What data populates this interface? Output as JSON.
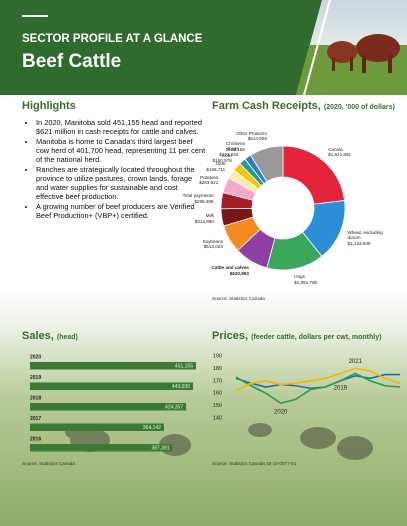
{
  "header": {
    "kicker": "SECTOR PROFILE AT A GLANCE",
    "title": "Beef Cattle"
  },
  "highlights": {
    "title": "Highlights",
    "items": [
      "In 2020, Manitoba sold 451,155 head and reported $621 million in cash receipts for cattle and calves.",
      "Manitoba is home to Canada's third largest beef cow herd of 401,700 head, representing 11 per cent of the national herd.",
      "Ranches are strategically located throughout the province to utilize pastures, crown lands, forage and water supplies for sustainable and cost effective beef production.",
      "A growing number of beef producers are Verified Beef Production+ (VBP+) certified."
    ]
  },
  "chart_data": [
    {
      "type": "pie",
      "donut": true,
      "title": "Farm Cash Receipts,",
      "subtitle": "(2020, '000 of dollars)",
      "categories": [
        "Canola",
        "Wheat, excluding durum",
        "Hogs",
        "Cattle and calves",
        "Soybeans",
        "Milk",
        "Total payments",
        "Potatoes",
        "Oats",
        "Corn",
        "Eggs",
        "Chickens",
        "Other Products"
      ],
      "values": [
        1621891,
        1133939,
        1051790,
        620850,
        513023,
        314880,
        295489,
        283621,
        168711,
        160578,
        123642,
        123156,
        614926
      ],
      "value_labels": [
        "$1,621,891",
        "$1,133,939",
        "$1,051,790",
        "$620,850",
        "$513,023",
        "$314,880",
        "$295,489",
        "$283,621",
        "$168,711",
        "$160,578",
        "$123,642",
        "$123,156",
        "$614,926"
      ],
      "colors": [
        "#e3243b",
        "#2a8fd8",
        "#3aa75a",
        "#8e3fa6",
        "#f58a1f",
        "#7a1416",
        "#a51d24",
        "#f5a9c8",
        "#f7ecb0",
        "#f6c400",
        "#1d9e9a",
        "#2f7fc1",
        "#9a9a9a"
      ],
      "source": "Source: Statistics Canada"
    },
    {
      "type": "bar",
      "orientation": "horizontal",
      "title": "Sales,",
      "subtitle": "(head)",
      "categories": [
        "2020",
        "2019",
        "2018",
        "2017",
        "2016"
      ],
      "values": [
        451155,
        443030,
        424357,
        364142,
        387391
      ],
      "value_labels": [
        "451,155",
        "443,030",
        "424,357",
        "364,142",
        "387,391"
      ],
      "color": "#3b7a34",
      "source": "Source: Statistics Canada"
    },
    {
      "type": "line",
      "title": "Prices,",
      "subtitle": "(feeder cattle, dollars per cwt, monthly)",
      "categories": [
        null,
        null,
        null,
        null,
        null,
        null,
        null,
        null,
        null,
        null,
        null,
        null
      ],
      "series": [
        {
          "name": "2019",
          "color": "#1f6fa6",
          "values": [
            172,
            168,
            165,
            167,
            166,
            164,
            165,
            170,
            174,
            172,
            175,
            175
          ]
        },
        {
          "name": "2020",
          "color": "#2e9a4b",
          "values": [
            173,
            166,
            160,
            152,
            155,
            163,
            165,
            170,
            176,
            170,
            166,
            165
          ]
        },
        {
          "name": "2021",
          "color": "#f2b705",
          "values": [
            162,
            168,
            170,
            167,
            168,
            170,
            172,
            176,
            180,
            178,
            172,
            168
          ]
        }
      ],
      "ylim": [
        140,
        190
      ],
      "yticks": [
        140,
        150,
        160,
        170,
        180,
        190
      ],
      "source": "Source: Statistics Canada 32-10-0077-01"
    }
  ]
}
